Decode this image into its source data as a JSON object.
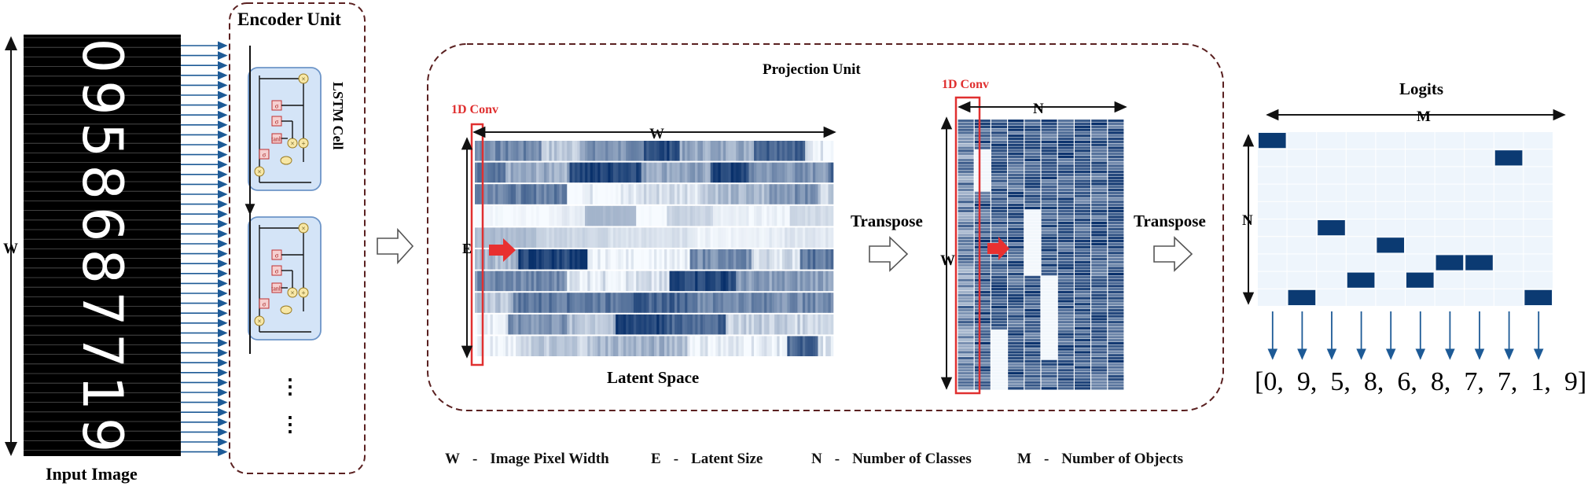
{
  "input": {
    "caption": "Input Image",
    "digits": [
      "0",
      "9",
      "5",
      "8",
      "6",
      "8",
      "7",
      "7",
      "1",
      "9"
    ],
    "width_label": "W"
  },
  "encoder": {
    "title": "Encoder Unit",
    "cell_label": "LSTM Cell",
    "gate_sigma": "σ",
    "gate_tanh": "tanh",
    "op_mul": "×",
    "op_add": "+",
    "more": "⋮"
  },
  "projection": {
    "title": "Projection Unit",
    "conv_label_1": "1D Conv",
    "conv_label_2": "1D Conv",
    "latent_label": "Latent Space",
    "w_label": "W",
    "e_label": "E",
    "n_label": "N",
    "w2_label": "W",
    "transpose_1": "Transpose",
    "transpose_2": "Transpose"
  },
  "logits": {
    "title": "Logits",
    "m_label": "M",
    "n_label": "N",
    "rows": 10,
    "cols": 10,
    "active_rows": [
      0,
      9,
      5,
      8,
      6,
      8,
      7,
      7,
      1,
      9
    ],
    "output_text": "[0,  9,  5,  8,  6,  8,  7,  7,  1,  9]"
  },
  "legend": [
    {
      "sym": "W",
      "dash": "-",
      "text": "Image Pixel Width"
    },
    {
      "sym": "E",
      "dash": "-",
      "text": "Latent Size"
    },
    {
      "sym": "N",
      "dash": "-",
      "text": "Number of Classes"
    },
    {
      "sym": "M",
      "dash": "-",
      "text": "Number of Objects"
    }
  ],
  "colors": {
    "navy": "#0b3a72",
    "blue_arrow": "#1d5a96",
    "conv_red": "#e03030",
    "dashed_border": "#5a2020",
    "cell_fill": "#d4e4f7",
    "cell_border": "#6d95c8"
  }
}
